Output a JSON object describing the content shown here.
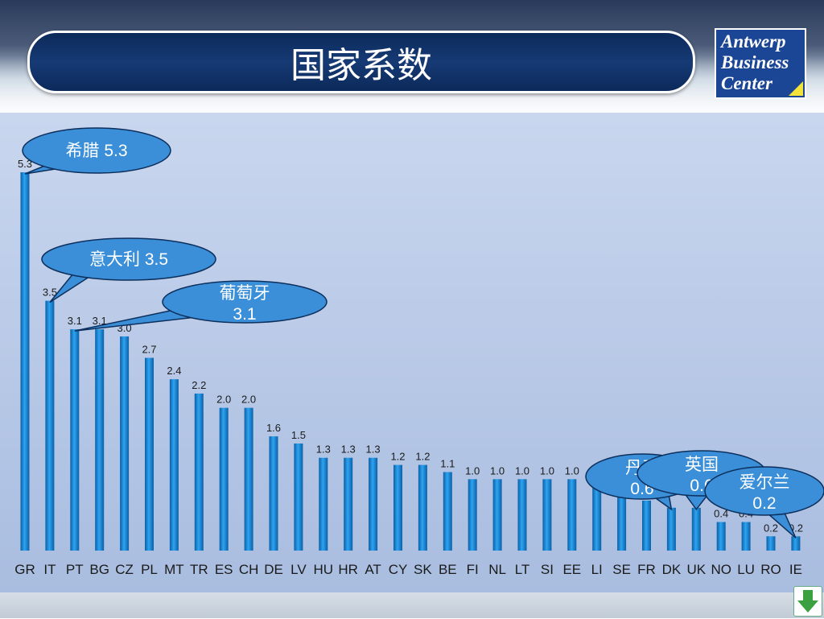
{
  "slide": {
    "title": "国家系数",
    "logo_lines": [
      "Antwerp",
      "Business",
      "Center"
    ]
  },
  "colors": {
    "bar": "#1f8fe0",
    "bar_dark": "#0a5fa8",
    "callout_fill": "#3a8fd8",
    "title_bg": "#12336b"
  },
  "chart_data": {
    "type": "bar",
    "title": "",
    "xlabel": "",
    "ylabel": "",
    "ylim": [
      0,
      5.3
    ],
    "grid": false,
    "categories": [
      "GR",
      "IT",
      "PT",
      "BG",
      "CZ",
      "PL",
      "MT",
      "TR",
      "ES",
      "CH",
      "DE",
      "LV",
      "HU",
      "HR",
      "AT",
      "CY",
      "SK",
      "BE",
      "FI",
      "NL",
      "LT",
      "SI",
      "EE",
      "LI",
      "SE",
      "FR",
      "DK",
      "UK",
      "NO",
      "LU",
      "RO",
      "IE"
    ],
    "values": [
      5.3,
      3.5,
      3.1,
      3.1,
      3.0,
      2.7,
      2.4,
      2.2,
      2.0,
      2.0,
      1.6,
      1.5,
      1.3,
      1.3,
      1.3,
      1.2,
      1.2,
      1.1,
      1.0,
      1.0,
      1.0,
      1.0,
      1.0,
      0.9,
      0.8,
      0.7,
      0.6,
      0.6,
      0.4,
      0.4,
      0.2,
      0.2
    ],
    "value_labels": [
      "5.3",
      "3.5",
      "3.1",
      "3.1",
      "3.0",
      "2.7",
      "2.4",
      "2.2",
      "2.0",
      "2.0",
      "1.6",
      "1.5",
      "1.3",
      "1.3",
      "1.3",
      "1.2",
      "1.2",
      "1.1",
      "1.0",
      "1.0",
      "1.0",
      "1.0",
      "1.0",
      "",
      "",
      "",
      "",
      "",
      "0.4",
      "0.4",
      "0.2",
      "0.2"
    ],
    "annotations": [
      {
        "text": "希腊 5.3",
        "points_to": "GR"
      },
      {
        "text": "意大利 3.5",
        "points_to": "IT"
      },
      {
        "text": "葡萄牙 3.1",
        "points_to": "PT"
      },
      {
        "text": "丹麦 0.6",
        "points_to": "DK"
      },
      {
        "text": "英国 0.6",
        "points_to": "UK"
      },
      {
        "text": "爱尔兰 0.2",
        "points_to": "IE"
      }
    ]
  }
}
